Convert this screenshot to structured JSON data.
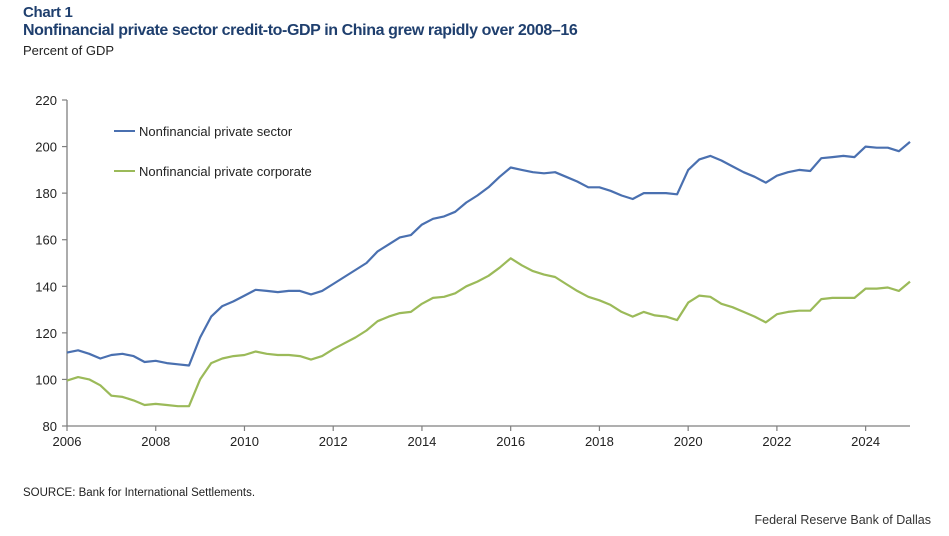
{
  "header": {
    "chart_label": "Chart 1",
    "title": "Nonfinancial private sector credit-to-GDP in China grew rapidly over 2008–16",
    "y_unit": "Percent of GDP"
  },
  "footer": {
    "source": "SOURCE: Bank for International Settlements.",
    "credit": "Federal Reserve Bank of Dallas"
  },
  "colors": {
    "title": "#1f3f6e",
    "series_sector": "#4a70b0",
    "series_corporate": "#9bba59",
    "axis": "#7f7f7f"
  },
  "chart_data": {
    "type": "line",
    "title": "Nonfinancial private sector credit-to-GDP in China grew rapidly over 2008–16",
    "xlabel": "",
    "ylabel": "Percent of GDP",
    "xlim": [
      2006,
      2025
    ],
    "ylim": [
      80,
      220
    ],
    "x_ticks": [
      2006,
      2008,
      2010,
      2012,
      2014,
      2016,
      2018,
      2020,
      2022,
      2024
    ],
    "x_tick_labels": [
      "2006",
      "2008",
      "2010",
      "2012",
      "2014",
      "2016",
      "2018",
      "2020",
      "2022",
      "2024"
    ],
    "y_ticks": [
      80,
      100,
      120,
      140,
      160,
      180,
      200,
      220
    ],
    "y_tick_labels": [
      "80",
      "100",
      "120",
      "140",
      "160",
      "180",
      "200",
      "220"
    ],
    "grid": false,
    "legend_position": "top-left",
    "x": [
      2006.0,
      2006.25,
      2006.5,
      2006.75,
      2007.0,
      2007.25,
      2007.5,
      2007.75,
      2008.0,
      2008.25,
      2008.5,
      2008.75,
      2009.0,
      2009.25,
      2009.5,
      2009.75,
      2010.0,
      2010.25,
      2010.5,
      2010.75,
      2011.0,
      2011.25,
      2011.5,
      2011.75,
      2012.0,
      2012.25,
      2012.5,
      2012.75,
      2013.0,
      2013.25,
      2013.5,
      2013.75,
      2014.0,
      2014.25,
      2014.5,
      2014.75,
      2015.0,
      2015.25,
      2015.5,
      2015.75,
      2016.0,
      2016.25,
      2016.5,
      2016.75,
      2017.0,
      2017.25,
      2017.5,
      2017.75,
      2018.0,
      2018.25,
      2018.5,
      2018.75,
      2019.0,
      2019.25,
      2019.5,
      2019.75,
      2020.0,
      2020.25,
      2020.5,
      2020.75,
      2021.0,
      2021.25,
      2021.5,
      2021.75,
      2022.0,
      2022.25,
      2022.5,
      2022.75,
      2023.0,
      2023.25,
      2023.5,
      2023.75,
      2024.0,
      2024.25,
      2024.5,
      2024.75,
      2025.0
    ],
    "series": [
      {
        "name": "Nonfinancial private sector",
        "values": [
          111.5,
          112.5,
          111,
          109,
          110.5,
          111,
          110,
          107.5,
          108,
          107,
          106.5,
          106,
          118,
          127,
          131.5,
          133.5,
          136,
          138.5,
          138,
          137.5,
          138,
          138,
          136.5,
          138,
          141,
          144,
          147,
          150,
          155,
          158,
          161,
          162,
          166.5,
          169,
          170,
          172,
          176,
          179,
          182.5,
          187,
          191,
          190,
          189,
          188.5,
          189,
          187,
          185,
          182.5,
          182.5,
          181,
          179,
          177.5,
          180,
          180,
          180,
          179.5,
          190,
          194.5,
          196,
          194,
          191.5,
          189,
          187,
          184.5,
          187.5,
          189,
          190,
          189.5,
          195,
          195.5,
          196,
          195.5,
          200,
          199.5,
          199.5,
          198,
          202
        ]
      },
      {
        "name": "Nonfinancial private corporate",
        "values": [
          99.5,
          101,
          100,
          97.5,
          93,
          92.5,
          91,
          89,
          89.5,
          89,
          88.5,
          88.5,
          100,
          107,
          109,
          110,
          110.5,
          112,
          111,
          110.5,
          110.5,
          110,
          108.5,
          110,
          113,
          115.5,
          118,
          121,
          125,
          127,
          128.5,
          129,
          132.5,
          135,
          135.5,
          137,
          140,
          142,
          144.5,
          148,
          152,
          149,
          146.5,
          145,
          144,
          141,
          138,
          135.5,
          134,
          132,
          129,
          127,
          129,
          127.5,
          127,
          125.5,
          133,
          136,
          135.5,
          132.5,
          131,
          129,
          127,
          124.5,
          128,
          129,
          129.5,
          129.5,
          134.5,
          135,
          135,
          135,
          139,
          139,
          139.5,
          138,
          142
        ]
      }
    ]
  }
}
